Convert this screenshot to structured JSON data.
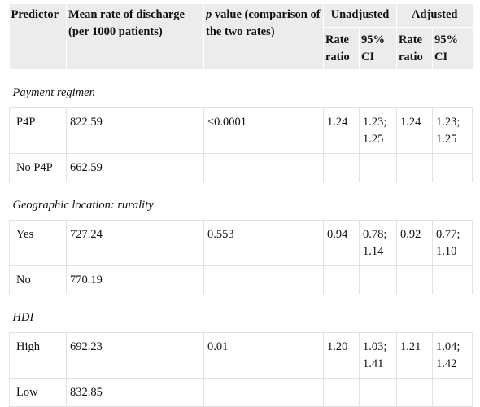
{
  "header": {
    "predictor": "Predictor",
    "mean_rate": "Mean rate of discharge (per 1000 patients)",
    "p_value_italic": "p",
    "p_value_rest": " value (comparison of the two rates)",
    "unadjusted": "Unadjusted",
    "adjusted": "Adjusted",
    "rate_ratio": "Rate ratio",
    "ci": "95% CI"
  },
  "sections": [
    {
      "title": "Payment regimen",
      "rows": [
        {
          "label": "P4P",
          "mean": "822.59",
          "p": "<0.0001",
          "u_rr": "1.24",
          "u_ci": "1.23; 1.25",
          "a_rr": "1.24",
          "a_ci": "1.23; 1.25"
        },
        {
          "label": "No P4P",
          "mean": "662.59",
          "p": "",
          "u_rr": "",
          "u_ci": "",
          "a_rr": "",
          "a_ci": ""
        }
      ]
    },
    {
      "title": "Geographic location: rurality",
      "rows": [
        {
          "label": "Yes",
          "mean": "727.24",
          "p": "0.553",
          "u_rr": "0.94",
          "u_ci": "0.78; 1.14",
          "a_rr": "0.92",
          "a_ci": "0.77; 1.10"
        },
        {
          "label": "No",
          "mean": "770.19",
          "p": "",
          "u_rr": "",
          "u_ci": "",
          "a_rr": "",
          "a_ci": ""
        }
      ]
    },
    {
      "title": "HDI",
      "rows": [
        {
          "label": "High",
          "mean": "692.23",
          "p": "0.01",
          "u_rr": "1.20",
          "u_ci": "1.03; 1.41",
          "a_rr": "1.21",
          "a_ci": "1.04; 1.42"
        },
        {
          "label": "Low",
          "mean": "832.85",
          "p": "",
          "u_rr": "",
          "u_ci": "",
          "a_rr": "",
          "a_ci": ""
        }
      ]
    }
  ]
}
